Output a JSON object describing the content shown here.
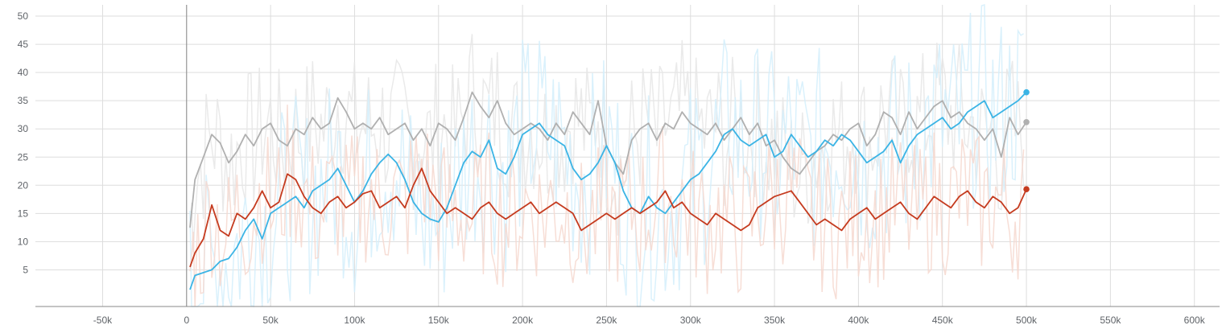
{
  "chart_data": {
    "type": "line",
    "title": "",
    "xlabel": "",
    "ylabel": "",
    "xlim": [
      -90000,
      615000
    ],
    "ylim": [
      -1.5,
      52
    ],
    "grid": true,
    "legend": "none",
    "x_ticks": [
      -50000,
      0,
      50000,
      100000,
      150000,
      200000,
      250000,
      300000,
      350000,
      400000,
      450000,
      500000,
      550000,
      600000
    ],
    "x_tick_labels": [
      "-50k",
      "0",
      "50k",
      "100k",
      "150k",
      "200k",
      "250k",
      "300k",
      "350k",
      "400k",
      "450k",
      "500k",
      "550k",
      "600k"
    ],
    "y_ticks": [
      5,
      10,
      15,
      20,
      25,
      30,
      35,
      40,
      45,
      50
    ],
    "y_tick_labels": [
      "5",
      "10",
      "15",
      "20",
      "25",
      "30",
      "35",
      "40",
      "45",
      "50"
    ],
    "series": [
      {
        "color": "#b0b0b0",
        "raw_color": "#e6e6e6",
        "end_value": 31.2,
        "x": [
          2000,
          5000,
          10000,
          15000,
          20000,
          25000,
          30000,
          35000,
          40000,
          45000,
          50000,
          55000,
          60000,
          65000,
          70000,
          75000,
          80000,
          85000,
          90000,
          95000,
          100000,
          105000,
          110000,
          115000,
          120000,
          125000,
          130000,
          135000,
          140000,
          145000,
          150000,
          155000,
          160000,
          165000,
          170000,
          175000,
          180000,
          185000,
          190000,
          195000,
          200000,
          205000,
          210000,
          215000,
          220000,
          225000,
          230000,
          235000,
          240000,
          245000,
          250000,
          255000,
          260000,
          265000,
          270000,
          275000,
          280000,
          285000,
          290000,
          295000,
          300000,
          305000,
          310000,
          315000,
          320000,
          325000,
          330000,
          335000,
          340000,
          345000,
          350000,
          355000,
          360000,
          365000,
          370000,
          375000,
          380000,
          385000,
          390000,
          395000,
          400000,
          405000,
          410000,
          415000,
          420000,
          425000,
          430000,
          435000,
          440000,
          445000,
          450000,
          455000,
          460000,
          465000,
          470000,
          475000,
          480000,
          485000,
          490000,
          495000,
          500000
        ],
        "y": [
          12.5,
          21,
          25,
          29,
          27.5,
          24,
          26,
          29,
          27,
          30,
          31,
          28,
          27,
          30,
          29,
          32,
          30,
          31,
          35.5,
          33,
          30,
          31,
          30,
          32,
          29,
          30,
          31,
          28,
          30,
          27,
          31,
          30,
          28,
          32,
          36.5,
          34,
          32,
          35,
          31,
          29,
          30,
          31,
          30,
          28,
          31,
          29,
          33,
          31,
          29,
          35,
          27,
          24,
          22,
          28,
          30,
          31,
          28,
          31,
          30,
          33,
          31,
          30,
          29,
          31,
          28,
          30,
          32,
          29,
          31,
          27,
          28,
          25,
          23,
          22,
          24,
          26,
          27,
          29,
          28,
          30,
          31,
          27,
          29,
          33,
          32,
          29,
          33,
          30,
          32,
          34,
          35,
          32,
          33,
          31,
          30,
          28,
          30,
          25,
          32,
          29,
          31.2
        ]
      },
      {
        "color": "#3bb4e5",
        "raw_color": "#d3eefb",
        "end_value": 36.5,
        "x": [
          2000,
          5000,
          10000,
          15000,
          20000,
          25000,
          30000,
          35000,
          40000,
          45000,
          50000,
          55000,
          60000,
          65000,
          70000,
          75000,
          80000,
          85000,
          90000,
          95000,
          100000,
          105000,
          110000,
          115000,
          120000,
          125000,
          130000,
          135000,
          140000,
          145000,
          150000,
          155000,
          160000,
          165000,
          170000,
          175000,
          180000,
          185000,
          190000,
          195000,
          200000,
          205000,
          210000,
          215000,
          220000,
          225000,
          230000,
          235000,
          240000,
          245000,
          250000,
          255000,
          260000,
          265000,
          270000,
          275000,
          280000,
          285000,
          290000,
          295000,
          300000,
          305000,
          310000,
          315000,
          320000,
          325000,
          330000,
          335000,
          340000,
          345000,
          350000,
          355000,
          360000,
          365000,
          370000,
          375000,
          380000,
          385000,
          390000,
          395000,
          400000,
          405000,
          410000,
          415000,
          420000,
          425000,
          430000,
          435000,
          440000,
          445000,
          450000,
          455000,
          460000,
          465000,
          470000,
          475000,
          480000,
          485000,
          490000,
          495000,
          500000
        ],
        "y": [
          1.5,
          4,
          4.5,
          5,
          6.5,
          7,
          9,
          12,
          14,
          10.5,
          15,
          16,
          17,
          18,
          16,
          19,
          20,
          21,
          23,
          20,
          17,
          19,
          22,
          24,
          25.5,
          24,
          21,
          17,
          15,
          14,
          13.5,
          16,
          20,
          24,
          26,
          25,
          28,
          23,
          22,
          25,
          29,
          30,
          31,
          29,
          28,
          27,
          23,
          21,
          22,
          24,
          27,
          24,
          19,
          16,
          15,
          18,
          16,
          15,
          17,
          19,
          21,
          22,
          24,
          26,
          29,
          30,
          28,
          27,
          28,
          29,
          25,
          26,
          29,
          27,
          25,
          26,
          28,
          27,
          29,
          28,
          26,
          24,
          25,
          26,
          28,
          24,
          27,
          29,
          30,
          31,
          32,
          30,
          31,
          33,
          34,
          35,
          32,
          33,
          34,
          35,
          36.5
        ]
      },
      {
        "color": "#c53b1f",
        "raw_color": "#f6d8cf",
        "end_value": 19.3,
        "x": [
          2000,
          5000,
          10000,
          15000,
          20000,
          25000,
          30000,
          35000,
          40000,
          45000,
          50000,
          55000,
          60000,
          65000,
          70000,
          75000,
          80000,
          85000,
          90000,
          95000,
          100000,
          105000,
          110000,
          115000,
          120000,
          125000,
          130000,
          135000,
          140000,
          145000,
          150000,
          155000,
          160000,
          165000,
          170000,
          175000,
          180000,
          185000,
          190000,
          195000,
          200000,
          205000,
          210000,
          215000,
          220000,
          225000,
          230000,
          235000,
          240000,
          245000,
          250000,
          255000,
          260000,
          265000,
          270000,
          275000,
          280000,
          285000,
          290000,
          295000,
          300000,
          305000,
          310000,
          315000,
          320000,
          325000,
          330000,
          335000,
          340000,
          345000,
          350000,
          355000,
          360000,
          365000,
          370000,
          375000,
          380000,
          385000,
          390000,
          395000,
          400000,
          405000,
          410000,
          415000,
          420000,
          425000,
          430000,
          435000,
          440000,
          445000,
          450000,
          455000,
          460000,
          465000,
          470000,
          475000,
          480000,
          485000,
          490000,
          495000,
          500000
        ],
        "y": [
          5.5,
          8,
          10.5,
          16.5,
          12,
          11,
          15,
          14,
          16,
          19,
          16,
          17,
          22,
          21,
          18,
          16,
          15,
          17,
          18,
          16,
          17,
          18.5,
          19,
          16,
          17,
          18,
          16,
          20,
          23,
          19,
          17,
          15,
          16,
          15,
          14,
          16,
          17,
          15,
          14,
          15,
          16,
          17,
          15,
          16,
          17,
          16,
          15,
          12,
          13,
          14,
          15,
          14,
          15,
          16,
          15,
          16,
          17,
          19,
          16,
          17,
          15,
          14,
          13,
          15,
          14,
          13,
          12,
          13,
          16,
          17,
          18,
          18.5,
          19,
          17,
          15,
          13,
          14,
          13,
          12,
          14,
          15,
          16,
          14,
          15,
          16,
          17,
          15,
          14,
          16,
          18,
          17,
          16,
          18,
          19,
          17,
          16,
          18,
          17,
          15,
          16,
          19.3
        ]
      }
    ]
  }
}
